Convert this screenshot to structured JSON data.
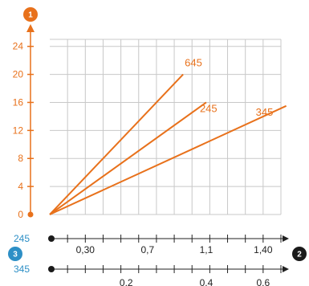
{
  "colors": {
    "accent": "#e8711b",
    "blue": "#2d8fc6",
    "grid": "#c8c8c8",
    "axis": "#222222",
    "badge_dark": "#1a1a1a"
  },
  "badges": {
    "one": "1",
    "two": "2",
    "three": "3"
  },
  "chart_data": {
    "type": "line",
    "grid": true,
    "y_axis": {
      "ticks": [
        0,
        4,
        8,
        12,
        16,
        20,
        24
      ],
      "tick_labels": [
        "0",
        "4",
        "8",
        "12",
        "16",
        "20",
        "24"
      ],
      "range": [
        0,
        25
      ]
    },
    "x_grid_lines": 13,
    "series": [
      {
        "name": "645",
        "points": [
          [
            0,
            0
          ],
          [
            7.5,
            20
          ]
        ]
      },
      {
        "name": "245",
        "points": [
          [
            0,
            0
          ],
          [
            8.8,
            16
          ]
        ]
      },
      {
        "name": "345",
        "points": [
          [
            0,
            0
          ],
          [
            13.3,
            15.5
          ]
        ]
      }
    ],
    "scale_245": {
      "name": "245",
      "tick_labels": [
        {
          "text": "0,30",
          "at": 2.0
        },
        {
          "text": "0,7",
          "at": 5.5
        },
        {
          "text": "1,1",
          "at": 8.8
        },
        {
          "text": "1,40",
          "at": 12.0
        }
      ]
    },
    "scale_345": {
      "name": "345",
      "tick_labels": [
        {
          "text": "0,2",
          "at": 4.3
        },
        {
          "text": "0,4",
          "at": 8.8
        },
        {
          "text": "0,6",
          "at": 12.0
        }
      ]
    }
  }
}
